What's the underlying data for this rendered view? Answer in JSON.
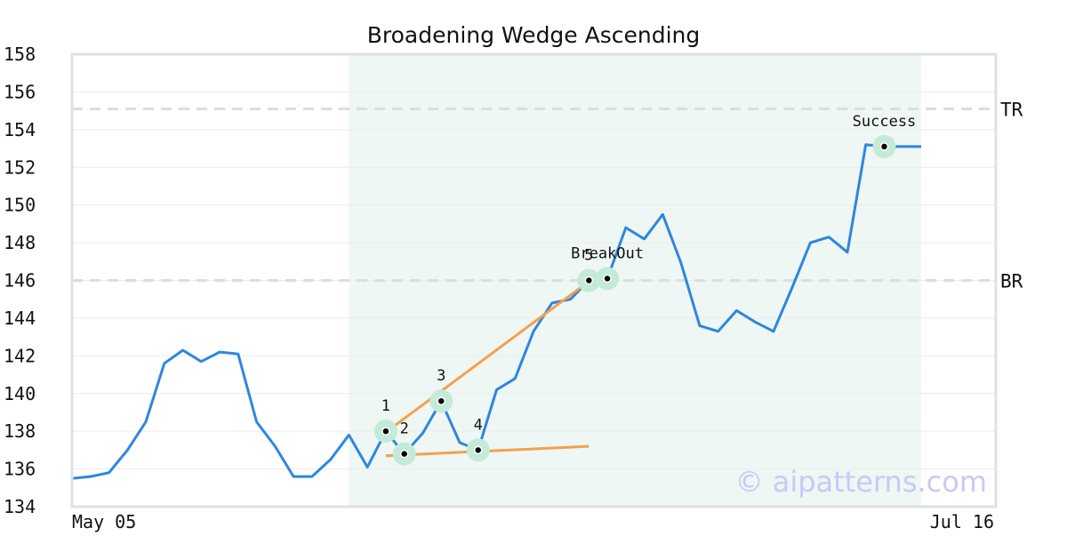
{
  "chart_data": {
    "type": "line",
    "title": "Broadening Wedge Ascending",
    "ylim": [
      134,
      158
    ],
    "yticks": [
      134,
      136,
      138,
      140,
      142,
      144,
      146,
      148,
      150,
      152,
      154,
      156,
      158
    ],
    "x_start_label": "May 05",
    "x_end_label": "Jul 16",
    "grid": true,
    "series": [
      {
        "values": [
          135.5,
          135.6,
          135.8,
          137.0,
          138.5,
          141.6,
          142.3,
          141.7,
          142.2,
          142.1,
          138.5,
          137.2,
          135.6,
          135.6,
          136.5,
          137.8,
          136.1,
          138.0,
          136.8,
          137.9,
          139.6,
          137.4,
          137.0,
          140.2,
          140.8,
          143.3,
          144.8,
          145.0,
          146.0,
          146.1,
          148.8,
          148.2,
          149.5,
          146.9,
          143.6,
          143.3,
          144.4,
          143.8,
          143.3,
          145.6,
          148.0,
          148.3,
          147.5,
          153.2,
          153.1,
          153.1,
          153.1
        ]
      }
    ],
    "pattern_region": {
      "start_index": 15,
      "end_index": 46
    },
    "levels": [
      {
        "label": "TR",
        "value": 155.1
      },
      {
        "label": "BR",
        "value": 146.0
      }
    ],
    "trendlines": [
      {
        "x": [
          17,
          28
        ],
        "y": [
          137.95,
          145.95
        ]
      },
      {
        "x": [
          17,
          28
        ],
        "y": [
          136.7,
          137.2
        ]
      }
    ],
    "points": [
      {
        "label": "1",
        "index": 17,
        "value": 138.0
      },
      {
        "label": "2",
        "index": 18,
        "value": 136.8
      },
      {
        "label": "3",
        "index": 20,
        "value": 139.6
      },
      {
        "label": "4",
        "index": 22,
        "value": 137.0
      },
      {
        "label": "5",
        "index": 28,
        "value": 146.0
      },
      {
        "label": "BreakOut",
        "index": 29,
        "value": 146.1
      },
      {
        "label": "Success",
        "index": 44,
        "value": 153.1
      }
    ],
    "colors": {
      "line": "#2e86e0",
      "trendline": "#f5a04e",
      "region": "#eef7f3",
      "marker_halo": "#c3ebd7",
      "level": "#dddddd"
    }
  },
  "watermark": "© aipatterns.com"
}
